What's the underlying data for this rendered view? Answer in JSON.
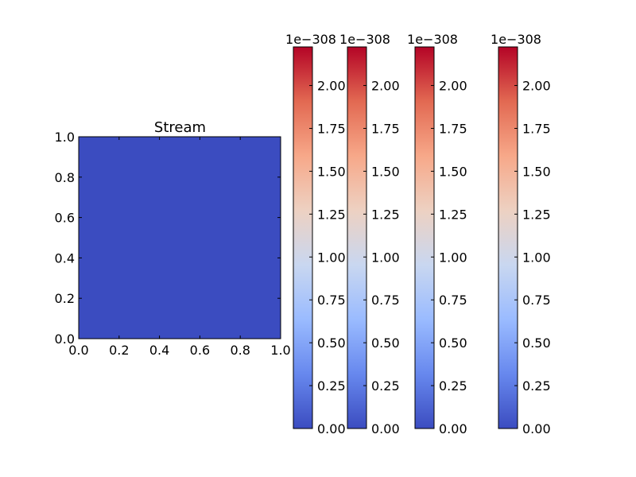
{
  "chart_data": {
    "type": "heatmap",
    "title": "Stream",
    "xlim": [
      0.0,
      1.0
    ],
    "ylim": [
      0.0,
      1.0
    ],
    "xticks": [
      "0.0",
      "0.2",
      "0.4",
      "0.6",
      "0.8",
      "1.0"
    ],
    "yticks": [
      "0.0",
      "0.2",
      "0.4",
      "0.6",
      "0.8",
      "1.0"
    ],
    "fill_color": "#3b4cc0",
    "colormap": "coolwarm",
    "colormap_stops": [
      "#3b4cc0",
      "#6788ee",
      "#9abbff",
      "#c9d7f0",
      "#edd1c2",
      "#f7a889",
      "#e26952",
      "#b40426"
    ],
    "colorbars": [
      {
        "exponent_label": "1e−308",
        "range": [
          0.0,
          2.225
        ],
        "ticks": [
          "0.00",
          "0.25",
          "0.50",
          "0.75",
          "1.00",
          "1.25",
          "1.50",
          "1.75",
          "2.00"
        ]
      },
      {
        "exponent_label": "1e−308",
        "range": [
          0.0,
          2.225
        ],
        "ticks": [
          "0.00",
          "0.25",
          "0.50",
          "0.75",
          "1.00",
          "1.25",
          "1.50",
          "1.75",
          "2.00"
        ]
      },
      {
        "exponent_label": "1e−308",
        "range": [
          0.0,
          2.225
        ],
        "ticks": [
          "0.00",
          "0.25",
          "0.50",
          "0.75",
          "1.00",
          "1.25",
          "1.50",
          "1.75",
          "2.00"
        ]
      },
      {
        "exponent_label": "1e−308",
        "range": [
          0.0,
          2.225
        ],
        "ticks": [
          "0.00",
          "0.25",
          "0.50",
          "0.75",
          "1.00",
          "1.25",
          "1.50",
          "1.75",
          "2.00"
        ]
      }
    ]
  }
}
